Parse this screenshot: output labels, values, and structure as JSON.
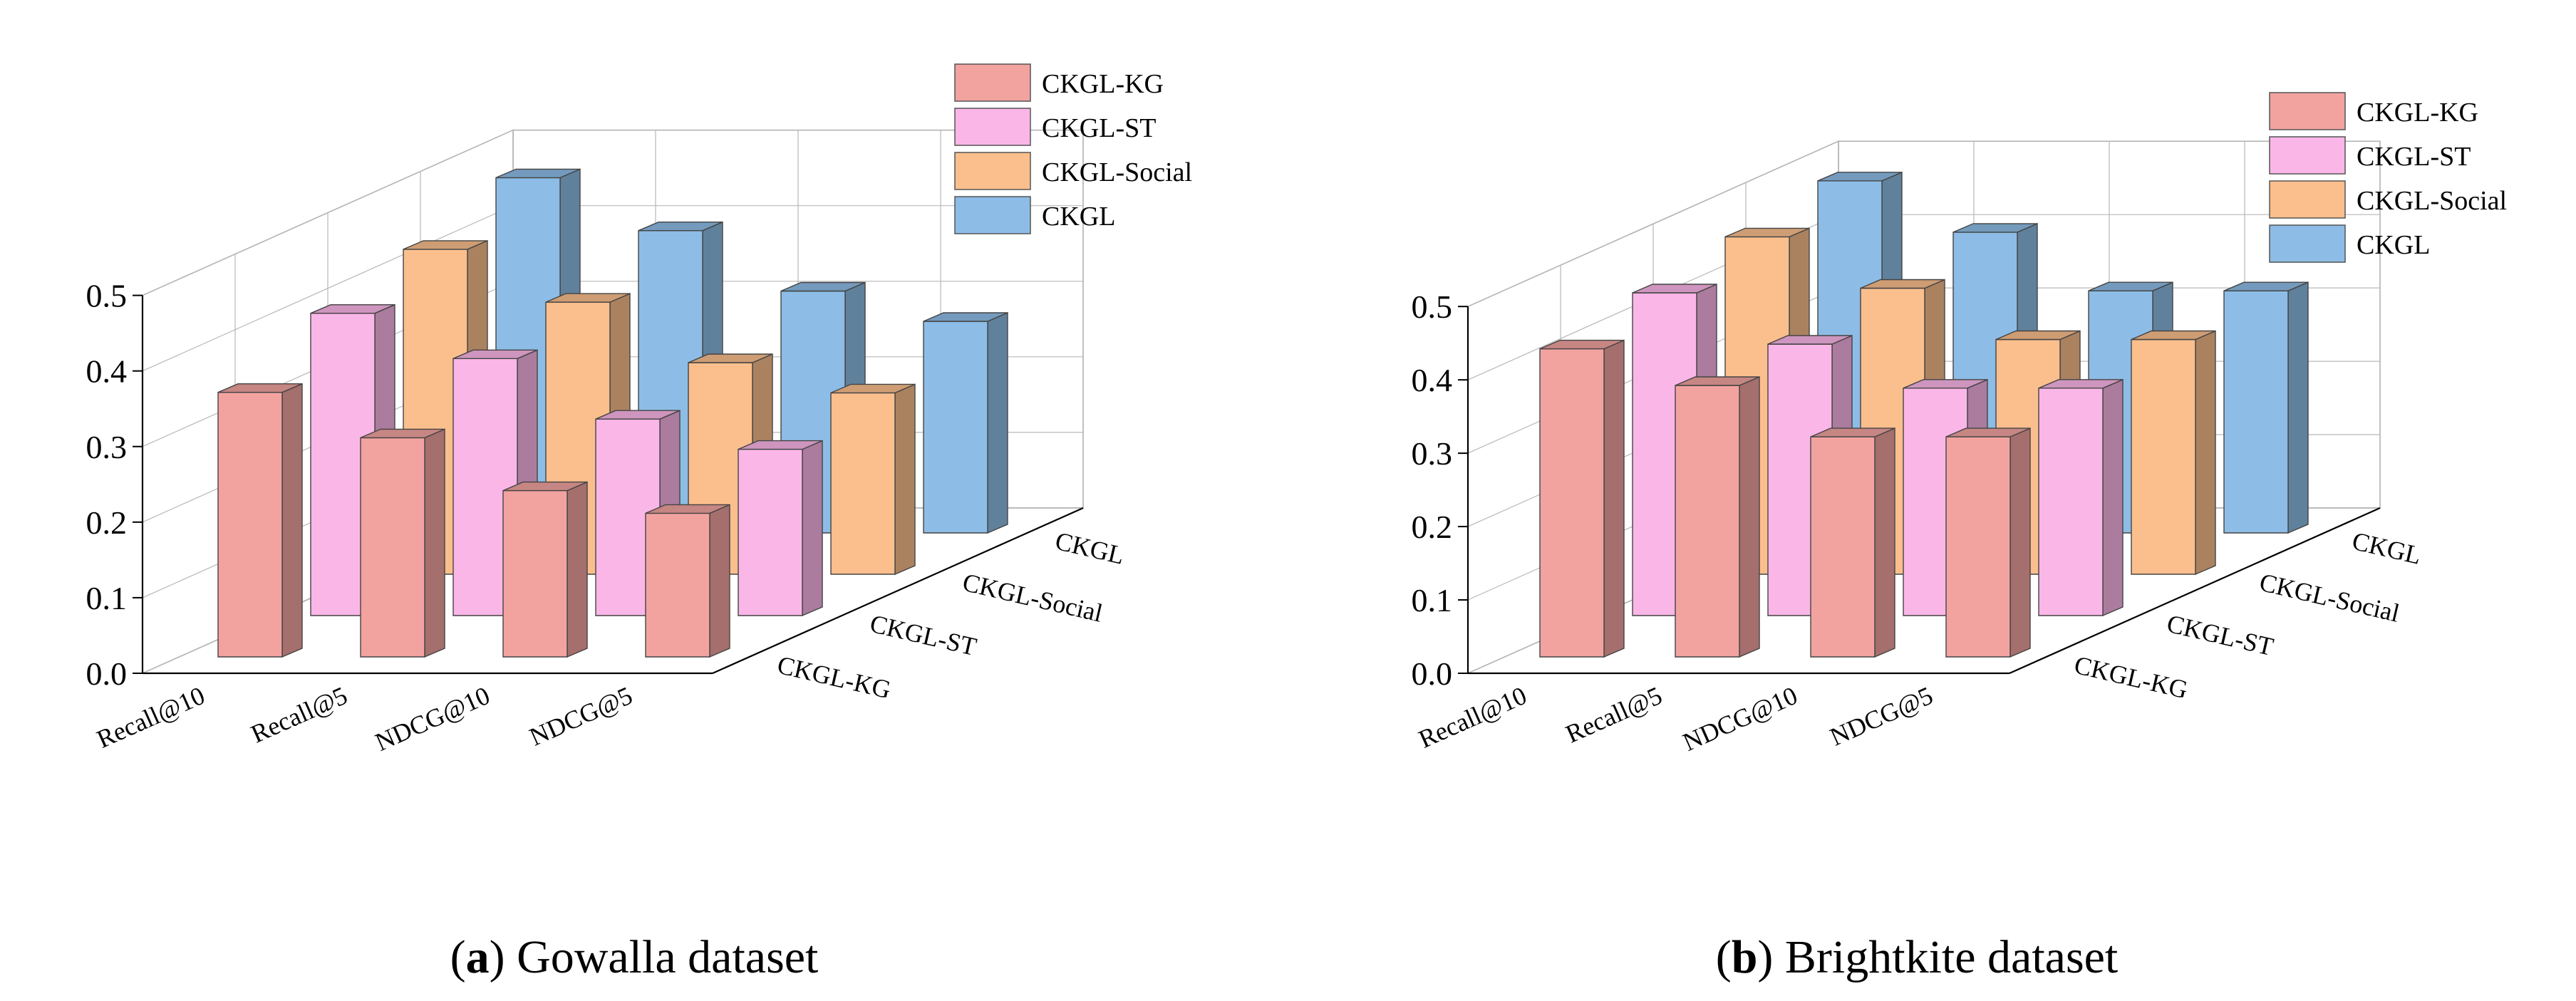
{
  "chart_data": [
    {
      "type": "bar",
      "title": "",
      "caption_letter": "a",
      "caption_text": " Gowalla dataset",
      "categories": [
        "Recall@10",
        "Recall@5",
        "NDCG@10",
        "NDCG@5"
      ],
      "series": [
        {
          "name": "CKGL-KG",
          "values": [
            0.35,
            0.29,
            0.22,
            0.19
          ]
        },
        {
          "name": "CKGL-ST",
          "values": [
            0.4,
            0.34,
            0.26,
            0.22
          ]
        },
        {
          "name": "CKGL-Social",
          "values": [
            0.43,
            0.36,
            0.28,
            0.24
          ]
        },
        {
          "name": "CKGL",
          "values": [
            0.47,
            0.4,
            0.32,
            0.28
          ]
        }
      ],
      "depth_labels": [
        "CKGL-KG",
        "CKGL-ST",
        "CKGL-Social",
        "CKGL"
      ],
      "yticks": [
        "0.0",
        "0.1",
        "0.2",
        "0.3",
        "0.4",
        "0.5"
      ],
      "ylim": [
        0,
        0.5
      ],
      "colors": [
        "#f2a3a0",
        "#fbb6e8",
        "#fbbf8d",
        "#8dbde6"
      ],
      "legend_position": "top-right",
      "grid": true
    },
    {
      "type": "bar",
      "title": "",
      "caption_letter": "b",
      "caption_text": " Brightkite dataset",
      "categories": [
        "Recall@10",
        "Recall@5",
        "NDCG@10",
        "NDCG@5"
      ],
      "series": [
        {
          "name": "CKGL-KG",
          "values": [
            0.42,
            0.37,
            0.3,
            0.3
          ]
        },
        {
          "name": "CKGL-ST",
          "values": [
            0.44,
            0.37,
            0.31,
            0.31
          ]
        },
        {
          "name": "CKGL-Social",
          "values": [
            0.46,
            0.39,
            0.32,
            0.32
          ]
        },
        {
          "name": "CKGL",
          "values": [
            0.48,
            0.41,
            0.33,
            0.33
          ]
        }
      ],
      "depth_labels": [
        "CKGL-KG",
        "CKGL-ST",
        "CKGL-Social",
        "CKGL"
      ],
      "yticks": [
        "0.0",
        "0.1",
        "0.2",
        "0.3",
        "0.4",
        "0.5"
      ],
      "ylim": [
        0,
        0.5
      ],
      "colors": [
        "#f2a3a0",
        "#fbb6e8",
        "#fbbf8d",
        "#8dbde6"
      ],
      "legend_position": "top-right",
      "grid": true
    }
  ]
}
